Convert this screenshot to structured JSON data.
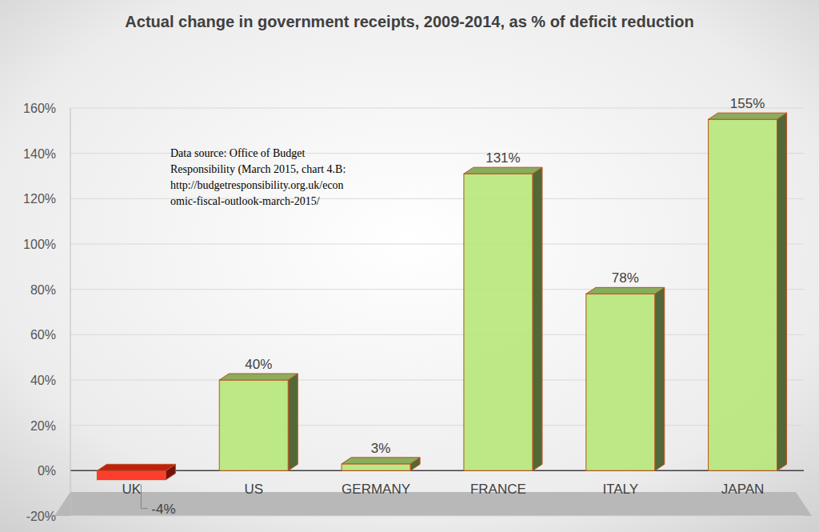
{
  "chart_data": {
    "type": "bar",
    "title": "Actual change in government receipts, 2009-2014, as % of deficit reduction",
    "annotations": [
      "Data source: Office of Budget",
      "Responsibility (March 2015, chart 4.B:",
      "http://budgetresponsibility.org.uk/econ",
      "omic-fiscal-outlook-march-2015/"
    ],
    "categories": [
      "UK",
      "US",
      "GERMANY",
      "FRANCE",
      "ITALY",
      "JAPAN"
    ],
    "values": [
      -4,
      40,
      3,
      131,
      78,
      155
    ],
    "value_labels": [
      "-4%",
      "40%",
      "3%",
      "131%",
      "78%",
      "155%"
    ],
    "colors": [
      "#ff2a1a",
      "#b6e77a",
      "#b6e77a",
      "#b6e77a",
      "#b6e77a",
      "#b6e77a"
    ],
    "data_labels": true,
    "ylim": [
      -20,
      160
    ],
    "yticks": [
      {
        "value": -20,
        "label": "-20%"
      },
      {
        "value": 0,
        "label": "0%"
      },
      {
        "value": 20,
        "label": "20%"
      },
      {
        "value": 40,
        "label": "40%"
      },
      {
        "value": 60,
        "label": "60%"
      },
      {
        "value": 80,
        "label": "80%"
      },
      {
        "value": 100,
        "label": "100%"
      },
      {
        "value": 120,
        "label": "120%"
      },
      {
        "value": 140,
        "label": "140%"
      },
      {
        "value": 160,
        "label": "160%"
      }
    ],
    "grid": true
  }
}
